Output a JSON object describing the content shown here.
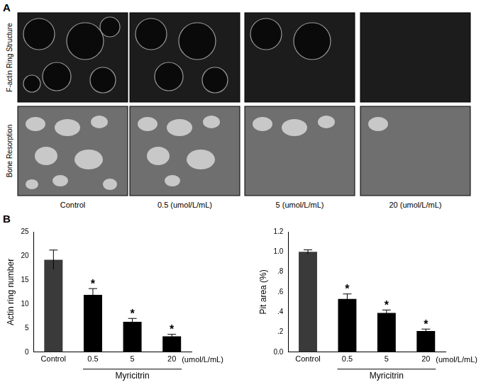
{
  "figure": {
    "panel_A": {
      "label": "A",
      "row_labels": [
        "F-actin Ring Structure",
        "Bone Resorption"
      ],
      "column_labels": [
        "Control",
        "0.5 (umol/L/mL)",
        "5 (umol/L/mL)",
        "20 (umol/L/mL)"
      ]
    },
    "panel_B": {
      "label": "B"
    }
  },
  "chart_data": [
    {
      "type": "bar",
      "y_label": "Actin ring number",
      "categories": [
        "Control",
        "0.5",
        "5",
        "20"
      ],
      "values": [
        19.2,
        11.9,
        6.3,
        3.3
      ],
      "errors": [
        2.0,
        1.3,
        0.7,
        0.4
      ],
      "colors": [
        "#3a3a3a",
        "#000000",
        "#000000",
        "#000000"
      ],
      "ylim": [
        0,
        25
      ],
      "yticks": [
        0,
        5,
        10,
        15,
        20,
        25
      ],
      "grid": false,
      "significance": [
        null,
        "*",
        "*",
        "*"
      ],
      "x_unit_label": "(umol/L/mL)",
      "group": {
        "label": "Myricitrin",
        "categories": [
          "0.5",
          "5",
          "20"
        ]
      }
    },
    {
      "type": "bar",
      "y_label": "Pit area (%)",
      "categories": [
        "Control",
        "0.5",
        "5",
        "20"
      ],
      "values": [
        1.0,
        0.53,
        0.39,
        0.21
      ],
      "errors": [
        0.02,
        0.05,
        0.03,
        0.02
      ],
      "colors": [
        "#3a3a3a",
        "#000000",
        "#000000",
        "#000000"
      ],
      "ylim": [
        0,
        1.2
      ],
      "yticks": [
        {
          "value": 0,
          "label": "0.0"
        },
        {
          "value": 0.2,
          "label": ".2"
        },
        {
          "value": 0.4,
          "label": ".4"
        },
        {
          "value": 0.6,
          "label": ".6"
        },
        {
          "value": 0.8,
          "label": ".8"
        },
        {
          "value": 1,
          "label": "1.0"
        },
        1.2
      ],
      "grid": false,
      "significance": [
        null,
        "*",
        "*",
        "*"
      ],
      "x_unit_label": "(umol/L/mL)",
      "group": {
        "label": "Myricitrin",
        "categories": [
          "0.5",
          "5",
          "20"
        ]
      }
    }
  ]
}
